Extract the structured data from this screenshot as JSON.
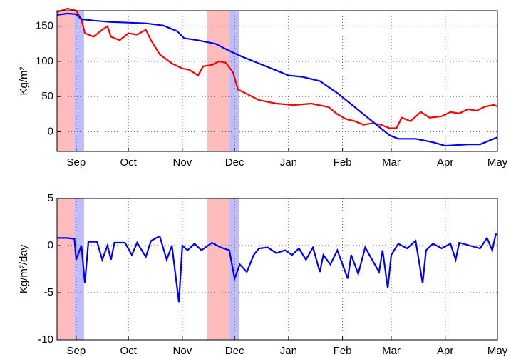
{
  "chart_data": [
    {
      "type": "line",
      "ylabel": "Kg/m²",
      "xlim": [
        -11,
        242
      ],
      "ylim": [
        -28,
        172
      ],
      "xticks": [
        {
          "value": 0,
          "label": "Sep"
        },
        {
          "value": 30,
          "label": "Oct"
        },
        {
          "value": 61,
          "label": "Nov"
        },
        {
          "value": 91,
          "label": "Dec"
        },
        {
          "value": 122,
          "label": "Jan"
        },
        {
          "value": 153,
          "label": "Feb"
        },
        {
          "value": 181,
          "label": "Mar"
        },
        {
          "value": 212,
          "label": "Apr"
        },
        {
          "value": 242,
          "label": "May"
        }
      ],
      "yticks": [
        0,
        50,
        100,
        150
      ],
      "grid": true,
      "spans": [
        {
          "color": "#ffbcbc",
          "x0": -11,
          "x1": -1
        },
        {
          "color": "#bcbcff",
          "x0": -1,
          "x1": 4.5
        },
        {
          "color": "#ffbcbc",
          "x0": 75.4,
          "x1": 88.1
        },
        {
          "color": "#bcbcff",
          "x0": 88.1,
          "x1": 93.4
        }
      ],
      "series": [
        {
          "color": "#ff0000",
          "x": [
            -11,
            -5,
            0,
            3,
            5,
            10,
            15,
            18,
            20,
            25,
            30,
            35,
            40,
            43,
            48,
            55,
            61,
            65,
            70,
            73,
            78,
            82,
            86,
            90,
            93,
            97,
            105,
            115,
            125,
            135,
            145,
            150,
            155,
            160,
            165,
            170,
            175,
            180,
            184,
            187,
            192,
            198,
            203,
            210,
            215,
            220,
            225,
            230,
            235,
            240,
            242
          ],
          "values": [
            170,
            175,
            172,
            160,
            140,
            135,
            145,
            150,
            135,
            130,
            140,
            138,
            145,
            130,
            110,
            97,
            90,
            88,
            80,
            93,
            95,
            100,
            98,
            85,
            60,
            55,
            45,
            40,
            38,
            40,
            35,
            25,
            18,
            15,
            10,
            12,
            10,
            5,
            5,
            20,
            15,
            28,
            20,
            22,
            28,
            26,
            32,
            30,
            36,
            38,
            36
          ]
        },
        {
          "color": "#0000ff",
          "x": [
            -11,
            -5,
            0,
            3,
            10,
            20,
            30,
            40,
            50,
            58,
            62,
            70,
            80,
            88,
            95,
            105,
            115,
            122,
            130,
            140,
            150,
            155,
            160,
            165,
            170,
            175,
            180,
            185,
            195,
            205,
            212,
            225,
            232,
            238,
            242
          ],
          "values": [
            166,
            168,
            167,
            160,
            158,
            156,
            155,
            154,
            151,
            143,
            133,
            130,
            125,
            115,
            107,
            97,
            87,
            80,
            78,
            72,
            55,
            45,
            35,
            25,
            15,
            5,
            -5,
            -10,
            -10,
            -15,
            -20,
            -18,
            -18,
            -12,
            -8
          ]
        }
      ]
    },
    {
      "type": "line",
      "ylabel": "Kg/m²/day",
      "xlim": [
        -11,
        242
      ],
      "ylim": [
        -10,
        5
      ],
      "xticks": [
        {
          "value": 0,
          "label": "Sep"
        },
        {
          "value": 30,
          "label": "Oct"
        },
        {
          "value": 61,
          "label": "Nov"
        },
        {
          "value": 91,
          "label": "Dec"
        },
        {
          "value": 122,
          "label": "Jan"
        },
        {
          "value": 153,
          "label": "Feb"
        },
        {
          "value": 181,
          "label": "Mar"
        },
        {
          "value": 212,
          "label": "Apr"
        },
        {
          "value": 242,
          "label": "May"
        }
      ],
      "yticks": [
        -10,
        -5,
        0,
        5
      ],
      "grid": true,
      "spans": [
        {
          "color": "#ffbcbc",
          "x0": -11,
          "x1": -1
        },
        {
          "color": "#bcbcff",
          "x0": -1,
          "x1": 4.5
        },
        {
          "color": "#ffbcbc",
          "x0": 75.4,
          "x1": 88.1
        },
        {
          "color": "#bcbcff",
          "x0": 88.1,
          "x1": 93.4
        }
      ],
      "series": [
        {
          "color": "#0000ff",
          "x": [
            -11,
            -5,
            -1,
            0,
            3,
            5,
            7,
            12,
            15,
            18,
            20,
            22,
            28,
            32,
            35,
            40,
            43,
            48,
            52,
            55,
            59,
            61,
            64,
            68,
            72,
            78,
            83,
            88,
            91,
            94,
            98,
            102,
            105,
            110,
            115,
            120,
            124,
            128,
            132,
            136,
            140,
            142,
            146,
            150,
            153,
            156,
            158,
            162,
            166,
            170,
            174,
            176,
            179,
            181,
            185,
            190,
            195,
            199,
            201,
            205,
            210,
            215,
            218,
            220,
            226,
            232,
            236,
            239,
            241,
            242
          ],
          "values": [
            0.8,
            0.8,
            0.7,
            -1.5,
            0,
            -4,
            0.4,
            0.4,
            -1.5,
            0,
            -1.5,
            0.3,
            0.3,
            -1,
            0.3,
            -1.2,
            0.5,
            1,
            -1.5,
            0,
            -6,
            0,
            -0.5,
            0.2,
            -0.5,
            0.3,
            -0.2,
            -0.5,
            -3.5,
            -2,
            -2.8,
            -1,
            -0.3,
            -0.2,
            -0.8,
            -0.5,
            -1,
            -0.3,
            -1.5,
            -0.2,
            -2.8,
            -1,
            -2,
            -0.5,
            -2,
            -3.5,
            -1,
            -3,
            -0.2,
            -1.5,
            -2.8,
            -0.5,
            -4.5,
            -1,
            0.2,
            -0.3,
            0.5,
            -4,
            -0.5,
            0.2,
            -0.3,
            0.2,
            -1.5,
            0.3,
            0,
            -0.3,
            0.8,
            -0.5,
            1.2,
            1.2
          ]
        }
      ]
    }
  ]
}
